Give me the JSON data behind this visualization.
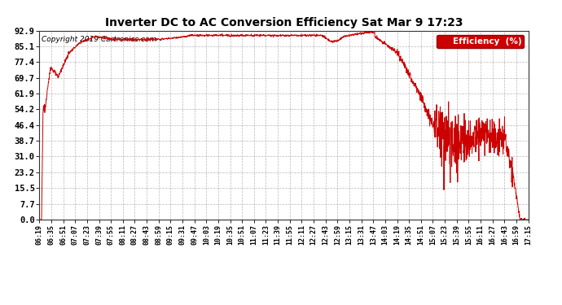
{
  "title": "Inverter DC to AC Conversion Efficiency Sat Mar 9 17:23",
  "copyright": "Copyright 2019 Cartronics.com",
  "legend_label": "Efficiency  (%)",
  "legend_bg": "#cc0000",
  "legend_fg": "#ffffff",
  "line_color": "#cc0000",
  "bg_color": "#ffffff",
  "grid_color": "#888888",
  "yticks": [
    0.0,
    7.7,
    15.5,
    23.2,
    31.0,
    38.7,
    46.4,
    54.2,
    61.9,
    69.7,
    77.4,
    85.1,
    92.9
  ],
  "xtick_labels": [
    "06:19",
    "06:35",
    "06:51",
    "07:07",
    "07:23",
    "07:39",
    "07:55",
    "08:11",
    "08:27",
    "08:43",
    "08:59",
    "09:15",
    "09:31",
    "09:47",
    "10:03",
    "10:19",
    "10:35",
    "10:51",
    "11:07",
    "11:23",
    "11:39",
    "11:55",
    "12:11",
    "12:27",
    "12:43",
    "12:59",
    "13:15",
    "13:31",
    "13:47",
    "14:03",
    "14:19",
    "14:35",
    "14:51",
    "15:07",
    "15:23",
    "15:39",
    "15:55",
    "16:11",
    "16:27",
    "16:43",
    "16:59",
    "17:15"
  ],
  "ymin": 0.0,
  "ymax": 92.9,
  "start_time": "06:19",
  "end_time": "17:15"
}
